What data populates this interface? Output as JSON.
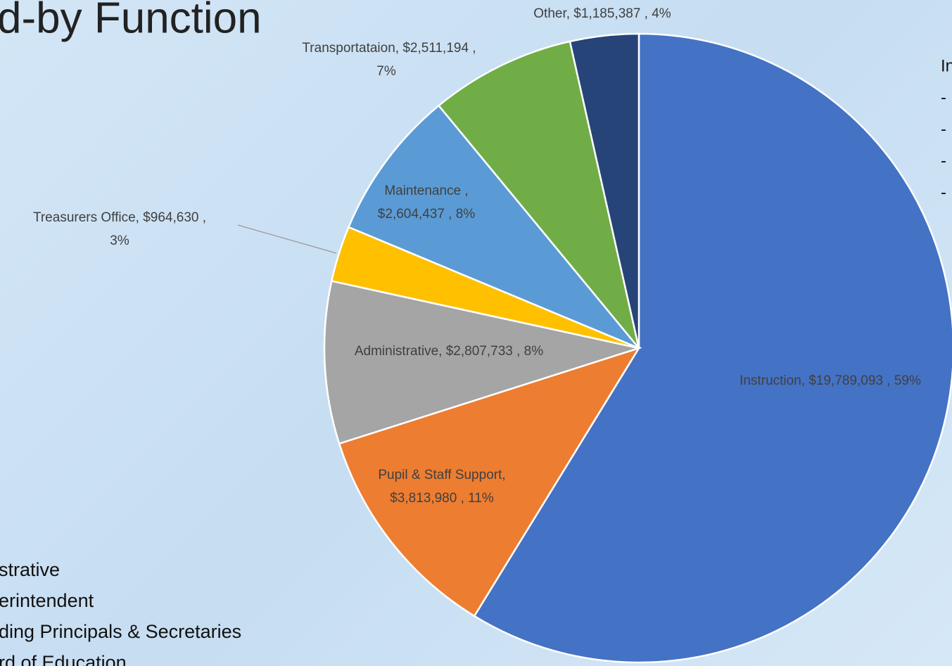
{
  "slide_title": "d-by Function",
  "left_lines": [
    "strative",
    "erintendent",
    "ding Principals & Secretaries",
    "rd of Education"
  ],
  "right_lines": [
    "In",
    "-",
    "-",
    "-",
    "-"
  ],
  "chart_data": {
    "type": "pie",
    "categories": [
      "Instruction",
      "Pupil & Staff Support",
      "Administrative",
      "Treasurers Office",
      "Maintenance",
      "Transportataion",
      "Other"
    ],
    "values": [
      19789093,
      3813980,
      2807733,
      964630,
      2604437,
      2511194,
      1185387
    ],
    "value_labels": [
      [
        "Instruction,  $19,789,093 , 59%"
      ],
      [
        "Pupil & Staff Support,",
        "$3,813,980 , 11%"
      ],
      [
        "Administrative,  $2,807,733 , 8%"
      ],
      [
        "Treasurers Office,  $964,630 ,",
        "3%"
      ],
      [
        "Maintenance ,",
        "$2,604,437 , 8%"
      ],
      [
        "Transportataion,  $2,511,194 ,",
        "7%"
      ],
      [
        "Other,  $1,185,387 , 4%"
      ]
    ],
    "colors": [
      "#4472c4",
      "#ed7d31",
      "#a5a5a5",
      "#ffc000",
      "#5b9bd5",
      "#70ad47",
      "#264478"
    ]
  }
}
